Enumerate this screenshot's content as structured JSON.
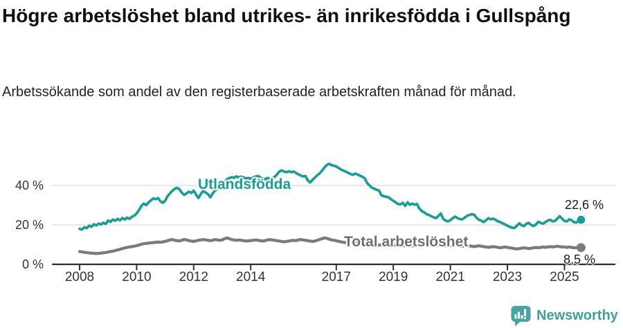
{
  "header": {
    "title": "Högre arbetslöshet bland utrikes- än inrikesfödda i Gullspång",
    "subtitle": "Arbetssökande som andel av den registerbaserade arbetskraften månad för månad."
  },
  "chart_data": {
    "type": "line",
    "title": "Högre arbetslöshet bland utrikes- än inrikesfödda i Gullspång",
    "subtitle": "Arbetssökande som andel av den registerbaserade arbetskraften månad för månad.",
    "unit": "%",
    "x_axis": {
      "ticks": [
        2008,
        2010,
        2012,
        2014,
        2017,
        2019,
        2021,
        2023,
        2025
      ],
      "labels": [
        "2008",
        "2010",
        "2012",
        "2014",
        "2017",
        "2019",
        "2021",
        "2023",
        "2025"
      ],
      "range": [
        2008.0,
        2025.583
      ]
    },
    "y_axis": {
      "ticks": [
        0,
        20,
        40
      ],
      "labels": [
        "0 %",
        "20 %",
        "40 %"
      ],
      "range": [
        0,
        55
      ],
      "grid": true
    },
    "colors": {
      "grid": "#d9d9d9",
      "axis": "#2e2e2e"
    },
    "x_start": 2008.0,
    "x_step_years": 0.0833333,
    "series": [
      {
        "id": "utlandsfodda",
        "name": "Utlandsfödda",
        "color": "#14a096",
        "end_label": "22,6 %",
        "end_value": 22.6,
        "values": [
          18,
          17.6,
          18.8,
          18.3,
          19.6,
          19,
          20.3,
          19.7,
          20.7,
          20.2,
          21.1,
          20.5,
          22.2,
          21.5,
          22.7,
          22.1,
          23.1,
          22.3,
          23.5,
          22.7,
          23.7,
          23.1,
          24.1,
          24.7,
          25.8,
          27.5,
          29.6,
          30.8,
          30,
          31.4,
          32.4,
          33.4,
          33,
          33.6,
          32,
          31.2,
          32.2,
          34.5,
          36,
          37.2,
          38.3,
          38.8,
          38,
          36.4,
          35.2,
          36,
          36.8,
          36.2,
          37.4,
          35.4,
          33.6,
          35.6,
          37.2,
          36.4,
          35.6,
          34,
          36,
          37.4,
          38.4,
          39.4,
          40.4,
          41.6,
          43.2,
          43.8,
          44.2,
          43.9,
          44.6,
          44.1,
          44.5,
          44,
          43.6,
          43.8,
          43.4,
          44,
          44.5,
          44.8,
          44.1,
          43.5,
          43.1,
          43.8,
          43.4,
          43.8,
          44.2,
          45.5,
          47,
          47.6,
          47.1,
          46.7,
          47.2,
          46.7,
          47.1,
          46.4,
          45.7,
          45.1,
          44.6,
          44.8,
          42.6,
          41.5,
          42.8,
          44,
          45.2,
          46.1,
          47.5,
          49,
          50.4,
          51,
          50.3,
          50,
          49.6,
          48.8,
          48.1,
          47.5,
          47,
          46.4,
          45.8,
          45.4,
          46,
          45.5,
          45,
          44.4,
          43.6,
          41.2,
          40,
          38.8,
          38.4,
          37.8,
          37.4,
          35,
          34.6,
          34.2,
          34,
          33,
          32.2,
          31.4,
          30.6,
          30.4,
          31.2,
          29.6,
          31.4,
          30.2,
          30.8,
          30.2,
          30.6,
          28.2,
          27,
          26.4,
          25.4,
          25,
          24.4,
          23.8,
          23.4,
          24.6,
          25.8,
          23,
          22.2,
          21.8,
          22.4,
          23.4,
          24.2,
          23.4,
          23,
          22.8,
          23.6,
          24.6,
          25,
          25.4,
          25.2,
          23.6,
          22.6,
          22.2,
          21.4,
          22.4,
          23.4,
          22.8,
          23.2,
          22.6,
          21.8,
          21.4,
          20.8,
          20.2,
          19.6,
          19,
          18.6,
          18.4,
          19.6,
          20.8,
          19.8,
          19.4,
          20.6,
          21,
          20,
          19.4,
          20.2,
          21.6,
          21,
          20.6,
          21.4,
          22.2,
          22.6,
          21.8,
          22,
          23.2,
          24.4,
          23.2,
          22,
          21.8,
          22.8,
          22.4,
          21.4,
          21.2,
          22,
          22.6
        ]
      },
      {
        "id": "total-arbetsloshet",
        "name": "Total arbetslöshet",
        "color": "#7b7b7b",
        "end_label": "8,5 %",
        "end_value": 8.5,
        "values": [
          6.5,
          6.3,
          6.1,
          6,
          5.8,
          5.7,
          5.6,
          5.5,
          5.6,
          5.7,
          5.9,
          6,
          6.2,
          6.5,
          6.7,
          7,
          7.3,
          7.6,
          8,
          8.3,
          8.6,
          8.8,
          9,
          9.2,
          9.5,
          9.8,
          10.2,
          10.5,
          10.6,
          10.8,
          10.9,
          11,
          11.2,
          11.3,
          11.2,
          11.4,
          11.6,
          12,
          12.4,
          12.6,
          12.2,
          12,
          11.8,
          12.2,
          12.6,
          12.4,
          12,
          11.8,
          11.6,
          11.9,
          12.2,
          12.4,
          12.6,
          12.4,
          12.2,
          12,
          12.2,
          12.6,
          12.4,
          12.2,
          12.4,
          13,
          13.4,
          13,
          12.6,
          12.4,
          12.2,
          12.4,
          12.2,
          12,
          11.8,
          12,
          12,
          12.2,
          12.4,
          12.2,
          12,
          11.8,
          12,
          12.4,
          12.6,
          12.4,
          12.2,
          12,
          11.8,
          11.6,
          11.4,
          11.6,
          11.8,
          12,
          12.2,
          12,
          12.4,
          12.6,
          12.4,
          12.2,
          12,
          11.8,
          11.6,
          11.8,
          12.2,
          12.6,
          13,
          13.4,
          13.2,
          12.8,
          12.4,
          12.2,
          12,
          11.6,
          11.4,
          11.2,
          11,
          11.2,
          11.4,
          11.2,
          11,
          10.8,
          10.6,
          10.8,
          10.6,
          10.4,
          10.2,
          10,
          9.8,
          9.6,
          9.8,
          10,
          9.8,
          9.6,
          9.4,
          9.6,
          9.8,
          9.6,
          9.4,
          9.2,
          9.4,
          9.6,
          9.8,
          9.6,
          9.4,
          9.2,
          9.4,
          9.6,
          9.8,
          10,
          10.2,
          10.4,
          10.2,
          10,
          9.8,
          9.6,
          9.8,
          9.6,
          9.4,
          9.2,
          9.4,
          9.6,
          9.8,
          9.6,
          9.4,
          9.2,
          9.4,
          9.6,
          9.4,
          9.2,
          9,
          9.2,
          9.4,
          9.2,
          9,
          8.8,
          8.6,
          8.8,
          9,
          8.8,
          8.6,
          8.4,
          8.6,
          8.8,
          8.6,
          8.4,
          8.2,
          8,
          7.8,
          8,
          8.2,
          8.4,
          8.2,
          8,
          8.2,
          8.4,
          8.6,
          8.4,
          8.6,
          8.8,
          8.6,
          8.8,
          9,
          8.8,
          9,
          9.2,
          9,
          8.8,
          8.8,
          8.6,
          8.8,
          8.6,
          8.4,
          8.5,
          8.4,
          8.5
        ]
      }
    ],
    "legend_position": "inline-labels"
  },
  "footer": {
    "brand": "Newsworthy",
    "icon": "speech-bubble-bar-chart-icon",
    "brand_color": "#45a5a1"
  }
}
